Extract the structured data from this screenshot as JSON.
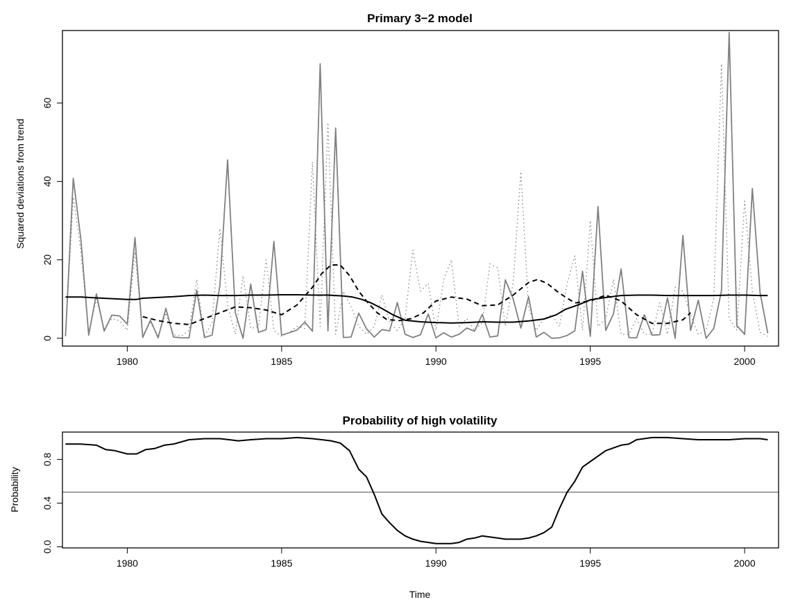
{
  "chart_data": [
    {
      "type": "line",
      "title": "Primary 3−2 model",
      "xlabel": "",
      "ylabel": "Squared deviations from trend",
      "xlim": [
        1977.9,
        2001.1
      ],
      "ylim": [
        -2,
        78.5
      ],
      "x_ticks": [
        1980,
        1985,
        1990,
        1995,
        2000
      ],
      "y_ticks": [
        0,
        20,
        40,
        60
      ],
      "grid": false,
      "legend": "none",
      "series": [
        {
          "style": "solid",
          "color": "#808080",
          "x_start": 1978.0,
          "x_step": 0.25,
          "values": [
            0.5,
            40.8,
            25.0,
            0.8,
            11.3,
            1.8,
            5.9,
            5.7,
            3.6,
            25.7,
            0.2,
            4.6,
            0.1,
            7.6,
            0.3,
            0.1,
            0.1,
            12.3,
            0.2,
            0.8,
            13.5,
            45.5,
            6.5,
            0.0,
            13.8,
            1.5,
            2.2,
            24.7,
            0.8,
            1.4,
            2.1,
            4.1,
            1.8,
            70.0,
            1.9,
            53.6,
            0.2,
            0.3,
            6.4,
            2.4,
            0.3,
            2.2,
            1.9,
            9.1,
            1.0,
            0.2,
            0.9,
            6.2,
            0.1,
            1.4,
            0.3,
            1.0,
            2.6,
            1.8,
            6.1,
            0.3,
            0.6,
            14.9,
            10.1,
            2.6,
            10.6,
            0.3,
            1.5,
            0.0,
            0.1,
            0.7,
            1.9,
            17.1,
            0.5,
            33.6,
            2.0,
            6.2,
            17.7,
            0.2,
            0.1,
            6.0,
            0.8,
            0.9,
            10.3,
            0.0,
            26.2,
            2.0,
            9.7,
            0.0,
            2.5,
            12.1,
            78.0,
            3.2,
            1.0,
            38.2,
            11.7,
            1.3
          ]
        },
        {
          "style": "dotted",
          "color": "#808080",
          "x_start": 1978.0,
          "x_step": 0.25,
          "values": [
            0.5,
            36.0,
            22.0,
            1.5,
            10.0,
            2.5,
            5.0,
            4.5,
            2.0,
            22.0,
            0.8,
            4.0,
            0.6,
            6.5,
            0.9,
            0.5,
            2.0,
            15.0,
            0.5,
            4.0,
            28.0,
            8.5,
            1.0,
            16.0,
            2.5,
            3.0,
            20.0,
            2.0,
            0.5,
            1.5,
            3.0,
            2.5,
            45.0,
            3.0,
            55.0,
            1.0,
            12.0,
            8.0,
            3.0,
            1.0,
            3.0,
            11.0,
            4.0,
            2.0,
            5.0,
            22.5,
            12.0,
            14.0,
            2.0,
            15.0,
            20.0,
            3.0,
            5.0,
            2.0,
            4.0,
            19.0,
            18.0,
            3.0,
            14.0,
            42.5,
            8.0,
            2.0,
            5.0,
            6.0,
            3.0,
            14.0,
            21.0,
            2.0,
            30.0,
            3.0,
            5.0,
            15.0,
            1.0,
            1.0,
            5.0,
            1.0,
            1.0,
            9.0,
            1.0,
            13.0,
            12.0,
            6.0,
            1.0,
            2.0,
            10.0,
            70.0,
            5.0,
            2.0,
            35.0,
            12.0,
            1.5,
            0.5
          ]
        },
        {
          "style": "solid",
          "color": "#000000",
          "x": [
            1978.0,
            1978.5,
            1979.0,
            1979.5,
            1980.0,
            1980.3,
            1980.5,
            1981.0,
            1981.5,
            1982.0,
            1982.5,
            1983.0,
            1983.5,
            1984.0,
            1984.5,
            1985.0,
            1985.5,
            1986.0,
            1986.5,
            1987.0,
            1987.3,
            1987.6,
            1987.9,
            1988.2,
            1988.6,
            1989.0,
            1989.5,
            1990.0,
            1990.5,
            1991.0,
            1991.5,
            1992.0,
            1992.5,
            1993.0,
            1993.5,
            1993.9,
            1994.2,
            1994.6,
            1995.0,
            1995.5,
            1996.0,
            1996.5,
            1997.0,
            1997.5,
            1998.0,
            1998.5,
            1999.0,
            1999.5,
            2000.0,
            2000.5,
            2000.75
          ],
          "values": [
            10.5,
            10.5,
            10.3,
            10.1,
            9.9,
            9.9,
            10.2,
            10.4,
            10.6,
            10.9,
            11.0,
            10.9,
            10.9,
            11.0,
            11.0,
            11.1,
            11.1,
            11.0,
            11.0,
            10.8,
            10.5,
            9.9,
            9.0,
            7.8,
            6.0,
            4.6,
            4.2,
            4.0,
            3.9,
            4.0,
            4.2,
            4.1,
            4.1,
            4.4,
            4.9,
            6.0,
            7.4,
            8.5,
            9.8,
            10.4,
            10.9,
            11.0,
            11.0,
            10.9,
            10.9,
            10.9,
            10.9,
            11.0,
            11.0,
            10.9,
            10.9
          ]
        },
        {
          "style": "dashed",
          "color": "#000000",
          "x": [
            1980.5,
            1981.0,
            1981.5,
            1982.0,
            1982.5,
            1983.0,
            1983.5,
            1984.0,
            1984.5,
            1985.0,
            1985.5,
            1986.0,
            1986.3,
            1986.6,
            1986.9,
            1987.2,
            1987.5,
            1987.8,
            1988.1,
            1988.4,
            1988.8,
            1989.2,
            1989.6,
            1990.0,
            1990.5,
            1991.0,
            1991.5,
            1992.0,
            1992.5,
            1993.0,
            1993.3,
            1993.6,
            1994.0,
            1994.5,
            1995.0,
            1995.5,
            1996.0,
            1996.5,
            1997.0,
            1997.5,
            1998.0,
            1998.25
          ],
          "values": [
            5.5,
            4.5,
            3.8,
            3.5,
            5.0,
            6.5,
            8.0,
            7.8,
            7.2,
            6.0,
            8.5,
            13.0,
            16.5,
            18.7,
            18.7,
            16.0,
            12.0,
            9.0,
            6.5,
            4.8,
            4.5,
            5.0,
            6.5,
            9.5,
            10.5,
            10.0,
            8.3,
            8.5,
            11.0,
            14.2,
            15.0,
            14.0,
            11.5,
            9.0,
            9.5,
            11.0,
            9.5,
            6.0,
            3.8,
            3.8,
            4.7,
            6.5
          ]
        }
      ]
    },
    {
      "type": "line",
      "title": "Probability of high volatility",
      "xlabel": "Time",
      "ylabel": "Probability",
      "xlim": [
        1977.9,
        2001.1
      ],
      "ylim": [
        -0.01,
        1.05
      ],
      "x_ticks": [
        1980,
        1985,
        1990,
        1995,
        2000
      ],
      "y_ticks": [
        0.0,
        0.4,
        0.8
      ],
      "y_tick_labels": [
        "0.0",
        "0.4",
        "0.8"
      ],
      "grid": false,
      "legend": "none",
      "reference_line": {
        "y": 0.5,
        "color": "#808080"
      },
      "series": [
        {
          "style": "solid",
          "color": "#000000",
          "x": [
            1978.0,
            1978.5,
            1979.0,
            1979.3,
            1979.6,
            1980.0,
            1980.3,
            1980.6,
            1980.9,
            1981.2,
            1981.5,
            1982.0,
            1982.5,
            1983.0,
            1983.3,
            1983.6,
            1984.0,
            1984.5,
            1985.0,
            1985.5,
            1986.0,
            1986.3,
            1986.6,
            1986.9,
            1987.2,
            1987.5,
            1987.75,
            1988.0,
            1988.25,
            1988.5,
            1988.75,
            1989.0,
            1989.25,
            1989.5,
            1989.75,
            1990.0,
            1990.25,
            1990.5,
            1990.75,
            1991.0,
            1991.25,
            1991.5,
            1991.75,
            1992.0,
            1992.25,
            1992.5,
            1992.75,
            1993.0,
            1993.25,
            1993.5,
            1993.75,
            1994.0,
            1994.25,
            1994.5,
            1994.75,
            1995.0,
            1995.5,
            1996.0,
            1996.25,
            1996.5,
            1997.0,
            1997.5,
            1998.0,
            1998.5,
            1999.0,
            1999.5,
            2000.0,
            2000.5,
            2000.75
          ],
          "values": [
            0.94,
            0.94,
            0.93,
            0.89,
            0.88,
            0.85,
            0.85,
            0.89,
            0.9,
            0.93,
            0.94,
            0.98,
            0.99,
            0.99,
            0.98,
            0.97,
            0.98,
            0.99,
            0.99,
            1.0,
            0.99,
            0.98,
            0.97,
            0.95,
            0.88,
            0.71,
            0.64,
            0.48,
            0.3,
            0.22,
            0.15,
            0.1,
            0.07,
            0.05,
            0.04,
            0.03,
            0.03,
            0.03,
            0.04,
            0.07,
            0.08,
            0.1,
            0.09,
            0.08,
            0.07,
            0.07,
            0.07,
            0.08,
            0.1,
            0.13,
            0.18,
            0.35,
            0.5,
            0.6,
            0.73,
            0.78,
            0.88,
            0.93,
            0.94,
            0.98,
            1.0,
            1.0,
            0.99,
            0.98,
            0.98,
            0.98,
            0.99,
            0.99,
            0.98
          ]
        }
      ]
    }
  ]
}
